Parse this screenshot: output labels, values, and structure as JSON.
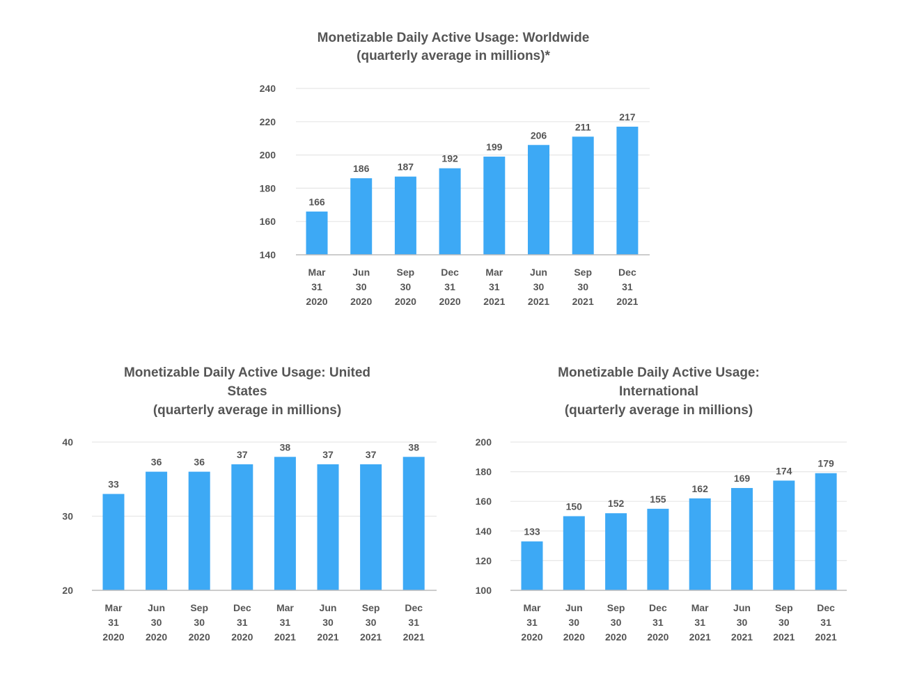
{
  "colors": {
    "bar": "#3DA9F5",
    "grid": "#E6E6E6",
    "axis": "#BBBBBB",
    "text": "#555555"
  },
  "chart_data": [
    {
      "type": "bar",
      "title": [
        "Monetizable Daily Active Usage: Worldwide",
        "(quarterly average in millions)*"
      ],
      "categories": [
        [
          "Mar",
          "31",
          "2020"
        ],
        [
          "Jun",
          "30",
          "2020"
        ],
        [
          "Sep",
          "30",
          "2020"
        ],
        [
          "Dec",
          "31",
          "2020"
        ],
        [
          "Mar",
          "31",
          "2021"
        ],
        [
          "Jun",
          "30",
          "2021"
        ],
        [
          "Sep",
          "30",
          "2021"
        ],
        [
          "Dec",
          "31",
          "2021"
        ]
      ],
      "values": [
        166,
        186,
        187,
        192,
        199,
        206,
        211,
        217
      ],
      "ylim": [
        140,
        240
      ],
      "yticks": [
        140,
        160,
        180,
        200,
        220,
        240
      ],
      "xlabel": "",
      "ylabel": "",
      "grid": true
    },
    {
      "type": "bar",
      "title": [
        "Monetizable Daily Active Usage: United",
        "States",
        "(quarterly average in millions)"
      ],
      "categories": [
        [
          "Mar",
          "31",
          "2020"
        ],
        [
          "Jun",
          "30",
          "2020"
        ],
        [
          "Sep",
          "30",
          "2020"
        ],
        [
          "Dec",
          "31",
          "2020"
        ],
        [
          "Mar",
          "31",
          "2021"
        ],
        [
          "Jun",
          "30",
          "2021"
        ],
        [
          "Sep",
          "30",
          "2021"
        ],
        [
          "Dec",
          "31",
          "2021"
        ]
      ],
      "values": [
        33,
        36,
        36,
        37,
        38,
        37,
        37,
        38
      ],
      "ylim": [
        20,
        40
      ],
      "yticks": [
        20,
        30,
        40
      ],
      "xlabel": "",
      "ylabel": "",
      "grid": true
    },
    {
      "type": "bar",
      "title": [
        "Monetizable Daily Active Usage:",
        "International",
        "(quarterly average in millions)"
      ],
      "categories": [
        [
          "Mar",
          "31",
          "2020"
        ],
        [
          "Jun",
          "30",
          "2020"
        ],
        [
          "Sep",
          "30",
          "2020"
        ],
        [
          "Dec",
          "31",
          "2020"
        ],
        [
          "Mar",
          "31",
          "2021"
        ],
        [
          "Jun",
          "30",
          "2021"
        ],
        [
          "Sep",
          "30",
          "2021"
        ],
        [
          "Dec",
          "31",
          "2021"
        ]
      ],
      "values": [
        133,
        150,
        152,
        155,
        162,
        169,
        174,
        179
      ],
      "ylim": [
        100,
        200
      ],
      "yticks": [
        100,
        120,
        140,
        160,
        180,
        200
      ],
      "xlabel": "",
      "ylabel": "",
      "grid": true
    }
  ]
}
